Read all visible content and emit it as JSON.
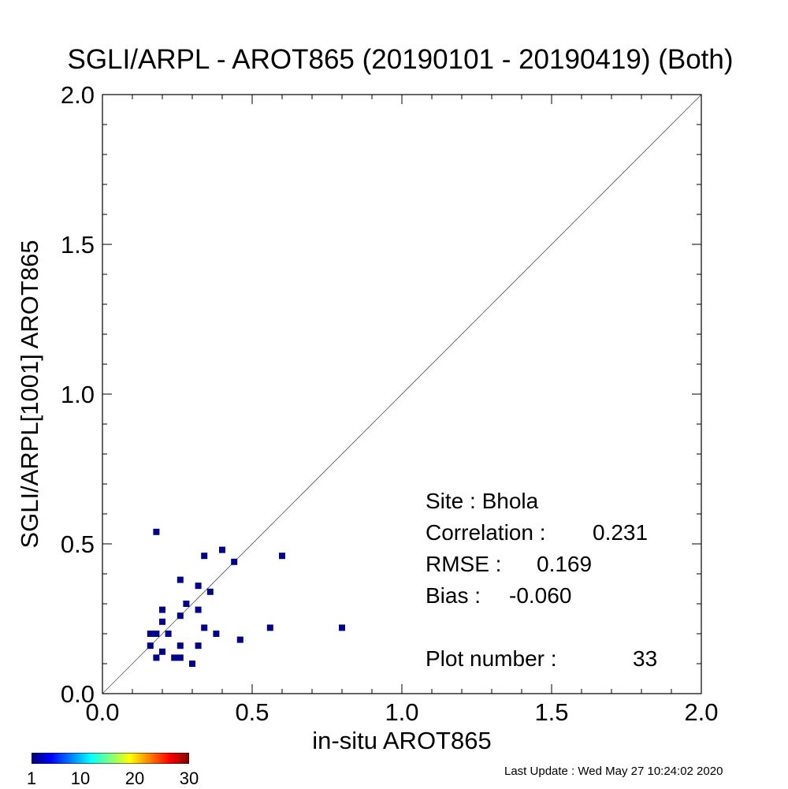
{
  "title": "SGLI/ARPL - AROT865 (20190101 - 20190419) (Both)",
  "chart_data": {
    "type": "scatter",
    "title": "SGLI/ARPL - AROT865 (20190101 - 20190419) (Both)",
    "xlabel": "in-situ AROT865",
    "ylabel": "SGLI/ARPL[1001]    AROT865",
    "xlim": [
      0.0,
      2.0
    ],
    "ylim": [
      0.0,
      2.0
    ],
    "x_ticks": [
      "0.0",
      "0.5",
      "1.0",
      "1.5",
      "2.0"
    ],
    "y_ticks": [
      "0.0",
      "0.5",
      "1.0",
      "1.5",
      "2.0"
    ],
    "reference_line": "1:1",
    "grid": false,
    "marker_color": "#00008b",
    "points": [
      {
        "x": 0.18,
        "y": 0.54
      },
      {
        "x": 0.4,
        "y": 0.48
      },
      {
        "x": 0.6,
        "y": 0.46
      },
      {
        "x": 0.34,
        "y": 0.46
      },
      {
        "x": 0.44,
        "y": 0.44
      },
      {
        "x": 0.26,
        "y": 0.38
      },
      {
        "x": 0.32,
        "y": 0.36
      },
      {
        "x": 0.36,
        "y": 0.34
      },
      {
        "x": 0.28,
        "y": 0.3
      },
      {
        "x": 0.2,
        "y": 0.28
      },
      {
        "x": 0.32,
        "y": 0.28
      },
      {
        "x": 0.26,
        "y": 0.26
      },
      {
        "x": 0.2,
        "y": 0.24
      },
      {
        "x": 0.8,
        "y": 0.22
      },
      {
        "x": 0.34,
        "y": 0.22
      },
      {
        "x": 0.56,
        "y": 0.22
      },
      {
        "x": 0.16,
        "y": 0.2
      },
      {
        "x": 0.18,
        "y": 0.2
      },
      {
        "x": 0.22,
        "y": 0.2
      },
      {
        "x": 0.38,
        "y": 0.2
      },
      {
        "x": 0.46,
        "y": 0.18
      },
      {
        "x": 0.16,
        "y": 0.16
      },
      {
        "x": 0.26,
        "y": 0.16
      },
      {
        "x": 0.32,
        "y": 0.16
      },
      {
        "x": 0.2,
        "y": 0.14
      },
      {
        "x": 0.18,
        "y": 0.12
      },
      {
        "x": 0.24,
        "y": 0.12
      },
      {
        "x": 0.26,
        "y": 0.12
      },
      {
        "x": 0.3,
        "y": 0.1
      }
    ]
  },
  "stats": {
    "site": "Site : Bhola",
    "correlation_label": "Correlation :",
    "correlation_value": "0.231",
    "rmse_label": "RMSE :",
    "rmse_value": "0.169",
    "bias_label": "Bias :",
    "bias_value": "-0.060",
    "plot_number_label": "Plot number :",
    "plot_number_value": "33"
  },
  "colorbar": {
    "ticks": [
      "1",
      "10",
      "20",
      "30"
    ],
    "colors": [
      "#00007f",
      "#0000ff",
      "#007fff",
      "#00ffff",
      "#7fff7f",
      "#ffff00",
      "#ff7f00",
      "#ff0000",
      "#7f0000"
    ]
  },
  "last_update": "Last Update : Wed May 27 10:24:02 2020"
}
